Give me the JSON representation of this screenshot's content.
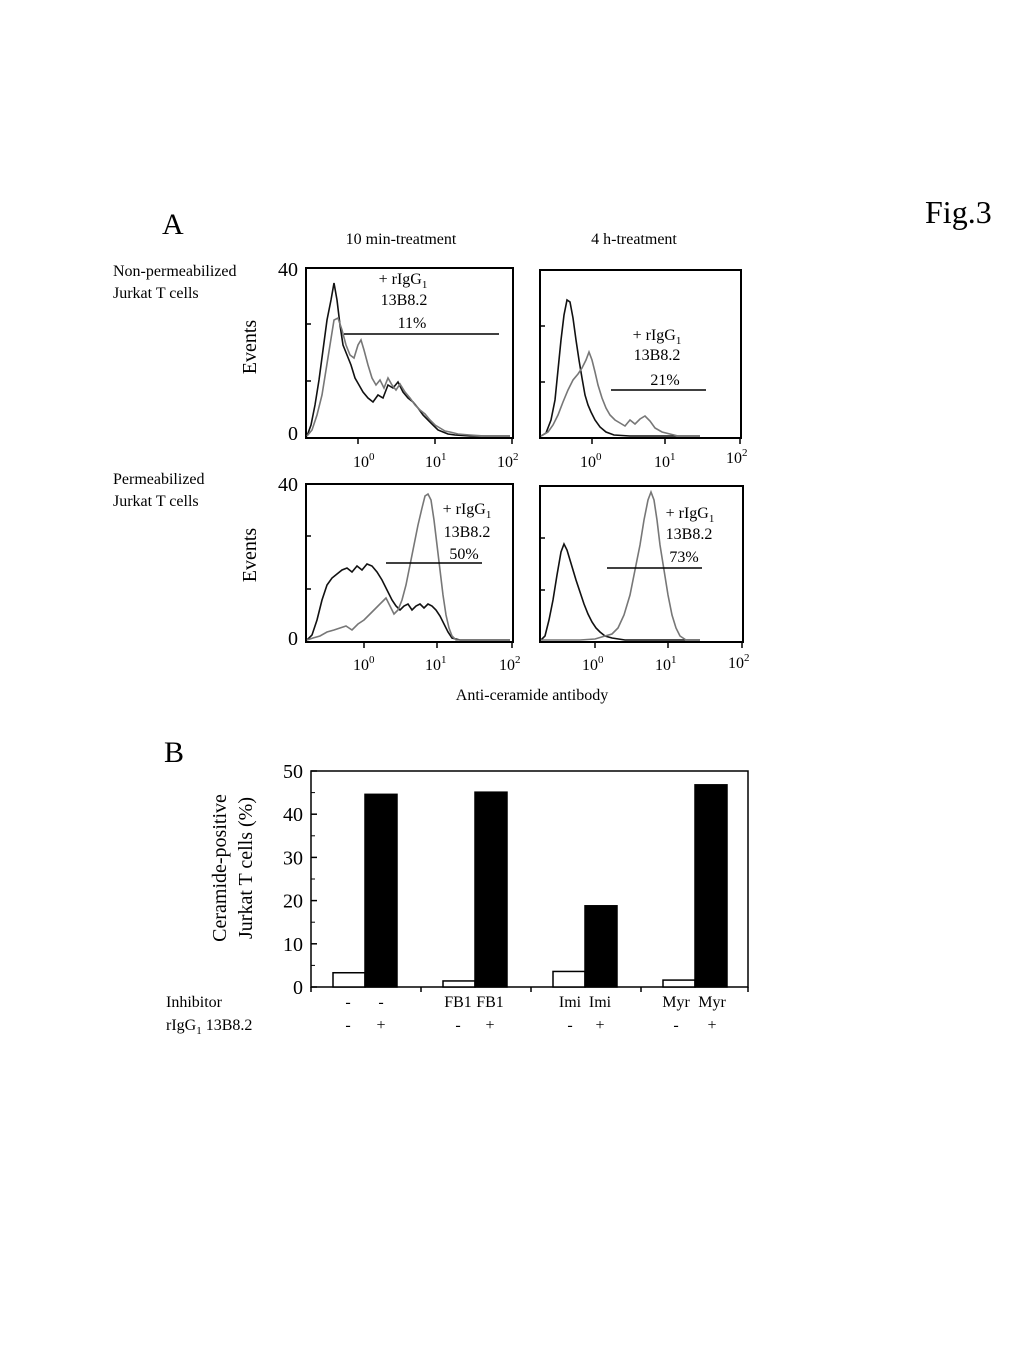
{
  "figure_label": "Fig.3",
  "panel_a": {
    "letter": "A",
    "col_headers": [
      "10 min-treatment",
      "4 h-treatment"
    ],
    "row_labels": [
      [
        "Non-permeabilized",
        "Jurkat T cells"
      ],
      [
        "Permeabilized",
        "Jurkat T cells"
      ]
    ],
    "y_axis_label": "Events",
    "x_axis_label": "Anti-ceramide antibody",
    "annotation_line1": "+ rIgG",
    "annotation_sub": "1",
    "annotation_line2": "13B8.2",
    "percents": [
      "11%",
      "21%",
      "50%",
      "73%"
    ]
  },
  "panel_b": {
    "letter": "B",
    "ylabel_line1": "Ceramide-positive",
    "ylabel_line2": "Jurkat T cells (%)",
    "row1_label": "Inhibitor",
    "row2_label_main": "rIgG",
    "row2_label_sub": "1",
    "row2_label_rest": " 13B8.2",
    "inhibitor_labels": [
      "-",
      "-",
      "FB1",
      "FB1",
      "Imi",
      "Imi",
      "Myr",
      "Myr"
    ],
    "antibody_labels": [
      "-",
      "+",
      "-",
      "+",
      "-",
      "+",
      "-",
      "+"
    ]
  },
  "chart_data": [
    {
      "type": "line",
      "panel": "A",
      "subplots": [
        {
          "row": "Non-permeabilized Jurkat T cells",
          "column": "10 min-treatment",
          "annotation": "+ rIgG1 13B8.2",
          "percent_positive": 11
        },
        {
          "row": "Non-permeabilized Jurkat T cells",
          "column": "4 h-treatment",
          "annotation": "+ rIgG1 13B8.2",
          "percent_positive": 21
        },
        {
          "row": "Permeabilized Jurkat T cells",
          "column": "10 min-treatment",
          "annotation": "+ rIgG1 13B8.2",
          "percent_positive": 50
        },
        {
          "row": "Permeabilized Jurkat T cells",
          "column": "4 h-treatment",
          "annotation": "+ rIgG1 13B8.2",
          "percent_positive": 73
        }
      ],
      "x_scale": "log",
      "x_tick_labels": [
        "10^0",
        "10^1",
        "10^2"
      ],
      "ylabel": "Events",
      "xlabel": "Anti-ceramide antibody",
      "y_ticks": [
        0,
        40
      ],
      "ylim": [
        0,
        40
      ]
    },
    {
      "type": "bar",
      "panel": "B",
      "categories": [
        "-",
        "FB1",
        "Imi",
        "Myr"
      ],
      "series": [
        {
          "values": [
            3.3,
            1.4,
            3.6,
            1.6
          ],
          "color": "#ffffff"
        },
        {
          "values": [
            44.6,
            45.1,
            18.8,
            46.8
          ],
          "color": "#000000"
        }
      ],
      "y_ticks": [
        0,
        10,
        20,
        30,
        40,
        50
      ],
      "ylim": [
        0,
        50
      ],
      "ylabel": "Ceramide-positive Jurkat T cells (%)"
    }
  ]
}
